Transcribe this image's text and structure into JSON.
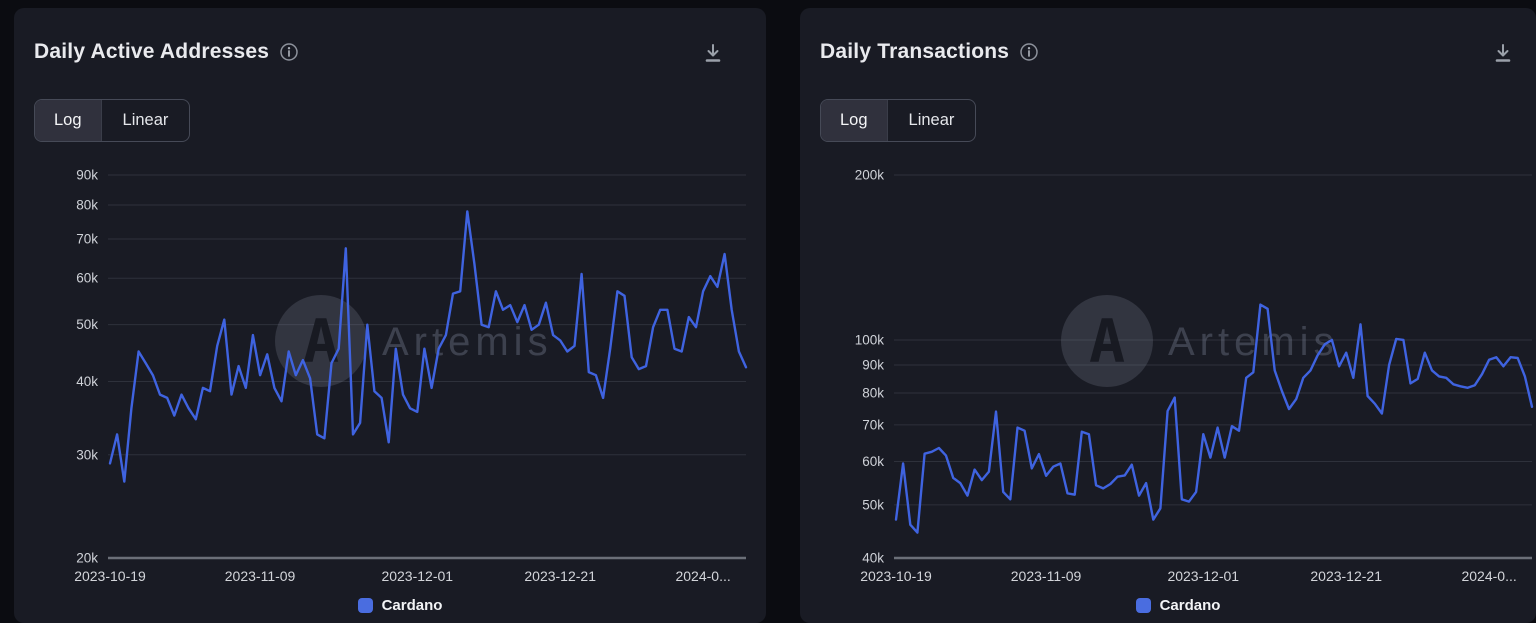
{
  "colors": {
    "page_background": "#0b0c11",
    "card_background": "#191b24",
    "grid_line": "#2e313b",
    "axis_line": "#6b6f78",
    "axis_label": "#cfd2d8",
    "title_text": "#e9eaee",
    "icon_gray": "#9aa0a9",
    "line_blue": "#3f63e0",
    "legend_swatch": "#4a6de0",
    "watermark_gray": "#8b93a6"
  },
  "panels": [
    {
      "title": "Daily Active Addresses",
      "toggle": {
        "options": [
          "Log",
          "Linear"
        ],
        "selected": "Log"
      },
      "legend": [
        {
          "label": "Cardano",
          "color": "#4a6de0"
        }
      ],
      "chart_data": {
        "type": "line",
        "title": "Daily Active Addresses",
        "xlabel": "",
        "ylabel": "",
        "y_scale": "log",
        "ylim": [
          20000,
          90000
        ],
        "grid": true,
        "legend_position": "bottom",
        "watermark": "Artemis",
        "y_ticks": [
          {
            "value": 90000,
            "label": "90k"
          },
          {
            "value": 80000,
            "label": "80k"
          },
          {
            "value": 70000,
            "label": "70k"
          },
          {
            "value": 60000,
            "label": "60k"
          },
          {
            "value": 50000,
            "label": "50k"
          },
          {
            "value": 40000,
            "label": "40k"
          },
          {
            "value": 30000,
            "label": "30k"
          },
          {
            "value": 20000,
            "label": "20k"
          }
        ],
        "x_ticks": [
          {
            "index": 0,
            "label": "2023-10-19"
          },
          {
            "index": 21,
            "label": "2023-11-09"
          },
          {
            "index": 43,
            "label": "2023-12-01"
          },
          {
            "index": 63,
            "label": "2023-12-21"
          },
          {
            "index": 83,
            "label": "2024-0..."
          }
        ],
        "series": [
          {
            "name": "Cardano",
            "color": "#3f63e0",
            "values": [
              29000,
              32500,
              27000,
              36000,
              45000,
              43000,
              41000,
              38000,
              37500,
              35000,
              38000,
              36000,
              34500,
              39000,
              38500,
              46000,
              51000,
              38000,
              42500,
              39000,
              48000,
              41000,
              44500,
              39000,
              37000,
              45000,
              41000,
              43500,
              40500,
              32500,
              32000,
              43000,
              45500,
              67500,
              32500,
              34000,
              50000,
              38500,
              37500,
              31500,
              45500,
              38000,
              36000,
              35500,
              45500,
              39000,
              45500,
              48000,
              56500,
              57000,
              78000,
              63500,
              50000,
              49500,
              57000,
              53000,
              54000,
              50500,
              54000,
              49000,
              50000,
              54500,
              48000,
              47000,
              45000,
              46000,
              61000,
              41500,
              41000,
              37500,
              45500,
              57000,
              56000,
              44000,
              42000,
              42500,
              49500,
              53000,
              53000,
              45500,
              45000,
              51500,
              49500,
              57000,
              60500,
              58000,
              66000,
              53000,
              45000,
              42300
            ]
          }
        ]
      }
    },
    {
      "title": "Daily Transactions",
      "toggle": {
        "options": [
          "Log",
          "Linear"
        ],
        "selected": "Log"
      },
      "legend": [
        {
          "label": "Cardano",
          "color": "#4a6de0"
        }
      ],
      "chart_data": {
        "type": "line",
        "title": "Daily Transactions",
        "xlabel": "",
        "ylabel": "",
        "y_scale": "log",
        "ylim": [
          40000,
          200000
        ],
        "grid": true,
        "legend_position": "bottom",
        "watermark": "Artemis",
        "y_ticks": [
          {
            "value": 200000,
            "label": "200k"
          },
          {
            "value": 100000,
            "label": "100k"
          },
          {
            "value": 90000,
            "label": "90k"
          },
          {
            "value": 80000,
            "label": "80k"
          },
          {
            "value": 70000,
            "label": "70k"
          },
          {
            "value": 60000,
            "label": "60k"
          },
          {
            "value": 50000,
            "label": "50k"
          },
          {
            "value": 40000,
            "label": "40k"
          }
        ],
        "x_ticks": [
          {
            "index": 0,
            "label": "2023-10-19"
          },
          {
            "index": 21,
            "label": "2023-11-09"
          },
          {
            "index": 43,
            "label": "2023-12-01"
          },
          {
            "index": 63,
            "label": "2023-12-21"
          },
          {
            "index": 83,
            "label": "2024-0..."
          }
        ],
        "series": [
          {
            "name": "Cardano",
            "color": "#3f63e0",
            "values": [
              47000,
              59500,
              46000,
              44500,
              62000,
              62500,
              63500,
              61500,
              56000,
              54800,
              52000,
              58000,
              55500,
              57500,
              74000,
              52800,
              51200,
              69200,
              68300,
              58300,
              61900,
              56500,
              58700,
              59500,
              52500,
              52200,
              68000,
              67300,
              54300,
              53600,
              54600,
              56300,
              56600,
              59200,
              52000,
              54800,
              47000,
              49300,
              74200,
              78500,
              51200,
              50700,
              52800,
              67300,
              61000,
              69200,
              61000,
              69600,
              68300,
              85300,
              87300,
              116000,
              114000,
              88000,
              80700,
              74800,
              78000,
              85300,
              88000,
              93700,
              98200,
              100000,
              89500,
              94800,
              85300,
              106800,
              79000,
              76500,
              73400,
              90000,
              100400,
              100000,
              83300,
              84900,
              94800,
              88000,
              85800,
              85300,
              83000,
              82300,
              81800,
              82700,
              86600,
              92000,
              93000,
              89500,
              93000,
              92700,
              85800,
              75500
            ]
          }
        ]
      }
    }
  ]
}
